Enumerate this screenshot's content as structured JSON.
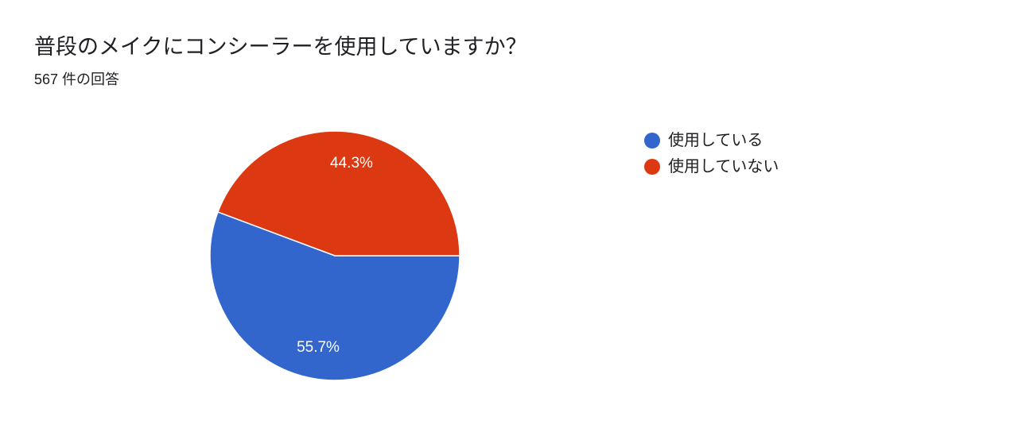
{
  "header": {
    "title": "普段のメイクにコンシーラーを使用していますか？",
    "response_count": "567 件の回答"
  },
  "colors": {
    "series_1": "#3366cc",
    "series_2": "#dc3912",
    "slice_label": "#ffffff"
  },
  "chart_data": {
    "type": "pie",
    "title": "普段のメイクにコンシーラーを使用していますか？",
    "categories": [
      "使用している",
      "使用していない"
    ],
    "values": [
      55.7,
      44.3
    ],
    "value_labels": [
      "55.7%",
      "44.3%"
    ],
    "colors": [
      "#3366cc",
      "#dc3912"
    ],
    "legend_position": "right"
  }
}
